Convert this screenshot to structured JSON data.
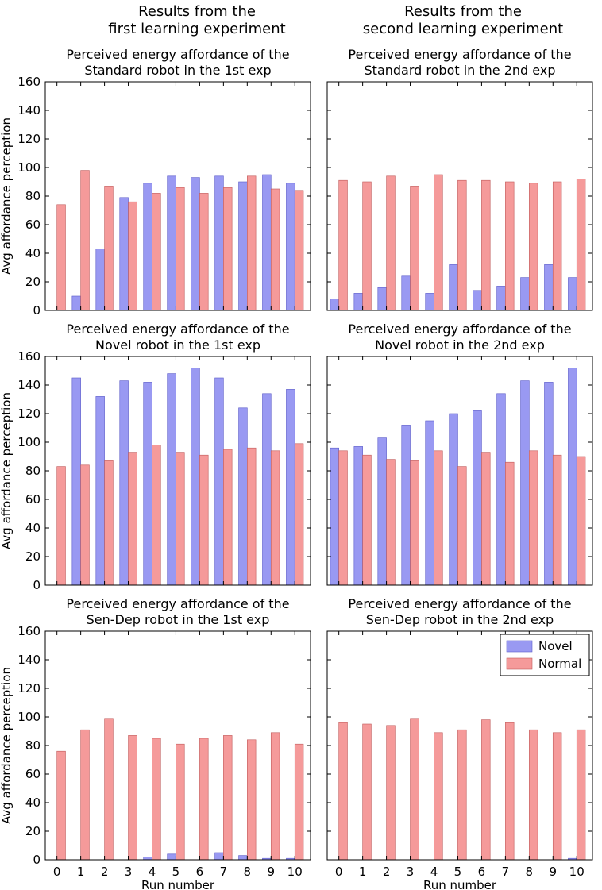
{
  "column_titles": [
    {
      "line1": "Results from the",
      "line2": "first learning experiment"
    },
    {
      "line1": "Results from the",
      "line2": "second learning experiment"
    }
  ],
  "colors": {
    "novel": "#9999f2",
    "novel_edge": "#5a5ac8",
    "normal": "#f59a9a",
    "normal_edge": "#c05a5a"
  },
  "legend": {
    "novel": "Novel",
    "normal": "Normal",
    "location": "top-right of bottom-right panel"
  },
  "chart_data": [
    {
      "type": "bar",
      "title_line1": "Perceived energy affordance of the",
      "title_line2": "Standard robot in the 1st exp",
      "categories": [
        "0",
        "1",
        "2",
        "3",
        "4",
        "5",
        "6",
        "7",
        "8",
        "9",
        "10"
      ],
      "series": [
        {
          "name": "Novel",
          "values": [
            0,
            10,
            43,
            79,
            89,
            94,
            93,
            94,
            90,
            95,
            89
          ]
        },
        {
          "name": "Normal",
          "values": [
            74,
            98,
            87,
            76,
            82,
            86,
            82,
            86,
            94,
            85,
            84
          ]
        }
      ],
      "ylabel": "Avg affordance perception",
      "xlabel": "",
      "ylim": [
        0,
        160
      ],
      "yticks": [
        "0",
        "20",
        "40",
        "60",
        "80",
        "100",
        "120",
        "140",
        "160"
      ]
    },
    {
      "type": "bar",
      "title_line1": "Perceived energy affordance of the",
      "title_line2": "Standard robot in the 2nd exp",
      "categories": [
        "0",
        "1",
        "2",
        "3",
        "4",
        "5",
        "6",
        "7",
        "8",
        "9",
        "10"
      ],
      "series": [
        {
          "name": "Novel",
          "values": [
            8,
            12,
            16,
            24,
            12,
            32,
            14,
            17,
            23,
            32,
            23
          ]
        },
        {
          "name": "Normal",
          "values": [
            91,
            90,
            94,
            87,
            95,
            91,
            91,
            90,
            89,
            90,
            92
          ]
        }
      ],
      "ylabel": "",
      "xlabel": "",
      "ylim": [
        0,
        160
      ],
      "yticks": []
    },
    {
      "type": "bar",
      "title_line1": "Perceived energy affordance of the",
      "title_line2": "Novel robot in the 1st exp",
      "categories": [
        "0",
        "1",
        "2",
        "3",
        "4",
        "5",
        "6",
        "7",
        "8",
        "9",
        "10"
      ],
      "series": [
        {
          "name": "Novel",
          "values": [
            0,
            145,
            132,
            143,
            142,
            148,
            152,
            145,
            124,
            134,
            137
          ]
        },
        {
          "name": "Normal",
          "values": [
            83,
            84,
            87,
            93,
            98,
            93,
            91,
            95,
            96,
            94,
            99
          ]
        }
      ],
      "ylabel": "Avg affordance perception",
      "xlabel": "",
      "ylim": [
        0,
        160
      ],
      "yticks": [
        "0",
        "20",
        "40",
        "60",
        "80",
        "100",
        "120",
        "140",
        "160"
      ]
    },
    {
      "type": "bar",
      "title_line1": "Perceived energy affordance of the",
      "title_line2": "Novel robot in the 2nd exp",
      "categories": [
        "0",
        "1",
        "2",
        "3",
        "4",
        "5",
        "6",
        "7",
        "8",
        "9",
        "10"
      ],
      "series": [
        {
          "name": "Novel",
          "values": [
            96,
            97,
            103,
            112,
            115,
            120,
            122,
            134,
            143,
            142,
            152
          ]
        },
        {
          "name": "Normal",
          "values": [
            94,
            91,
            88,
            87,
            94,
            83,
            93,
            86,
            94,
            91,
            90
          ]
        }
      ],
      "ylabel": "",
      "xlabel": "",
      "ylim": [
        0,
        160
      ],
      "yticks": []
    },
    {
      "type": "bar",
      "title_line1": "Perceived energy affordance of the",
      "title_line2": "Sen-Dep robot in the 1st exp",
      "categories": [
        "0",
        "1",
        "2",
        "3",
        "4",
        "5",
        "6",
        "7",
        "8",
        "9",
        "10"
      ],
      "series": [
        {
          "name": "Novel",
          "values": [
            0,
            0,
            0,
            0,
            2,
            4,
            0,
            5,
            3,
            1,
            1
          ]
        },
        {
          "name": "Normal",
          "values": [
            76,
            91,
            99,
            87,
            85,
            81,
            85,
            87,
            84,
            89,
            81
          ]
        }
      ],
      "ylabel": "Avg affordance perception",
      "xlabel": "Run number",
      "ylim": [
        0,
        160
      ],
      "yticks": [
        "0",
        "20",
        "40",
        "60",
        "80",
        "100",
        "120",
        "140",
        "160"
      ]
    },
    {
      "type": "bar",
      "title_line1": "Perceived energy affordance of the",
      "title_line2": "Sen-Dep robot in the 2nd exp",
      "categories": [
        "0",
        "1",
        "2",
        "3",
        "4",
        "5",
        "6",
        "7",
        "8",
        "9",
        "10"
      ],
      "series": [
        {
          "name": "Novel",
          "values": [
            0,
            0,
            0,
            0,
            0,
            0,
            0,
            0,
            0,
            0,
            1
          ]
        },
        {
          "name": "Normal",
          "values": [
            96,
            95,
            94,
            99,
            89,
            91,
            98,
            96,
            91,
            89,
            91
          ]
        }
      ],
      "ylabel": "",
      "xlabel": "Run number",
      "ylim": [
        0,
        160
      ],
      "yticks": [],
      "legend": true
    }
  ]
}
